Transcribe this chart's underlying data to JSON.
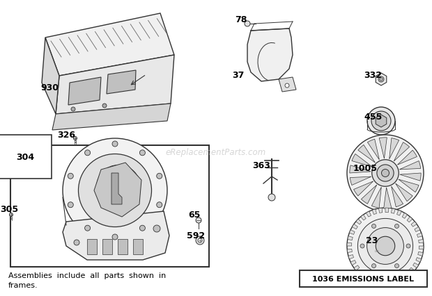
{
  "bg_color": "#ffffff",
  "bottom_text_line1": "Assemblies  include  all  parts  shown  in",
  "bottom_text_line2": "frames.",
  "emissions_label": "1036 EMISSIONS LABEL",
  "watermark": "eReplacementParts.com",
  "label_fontsize": 9,
  "small_fontsize": 7
}
